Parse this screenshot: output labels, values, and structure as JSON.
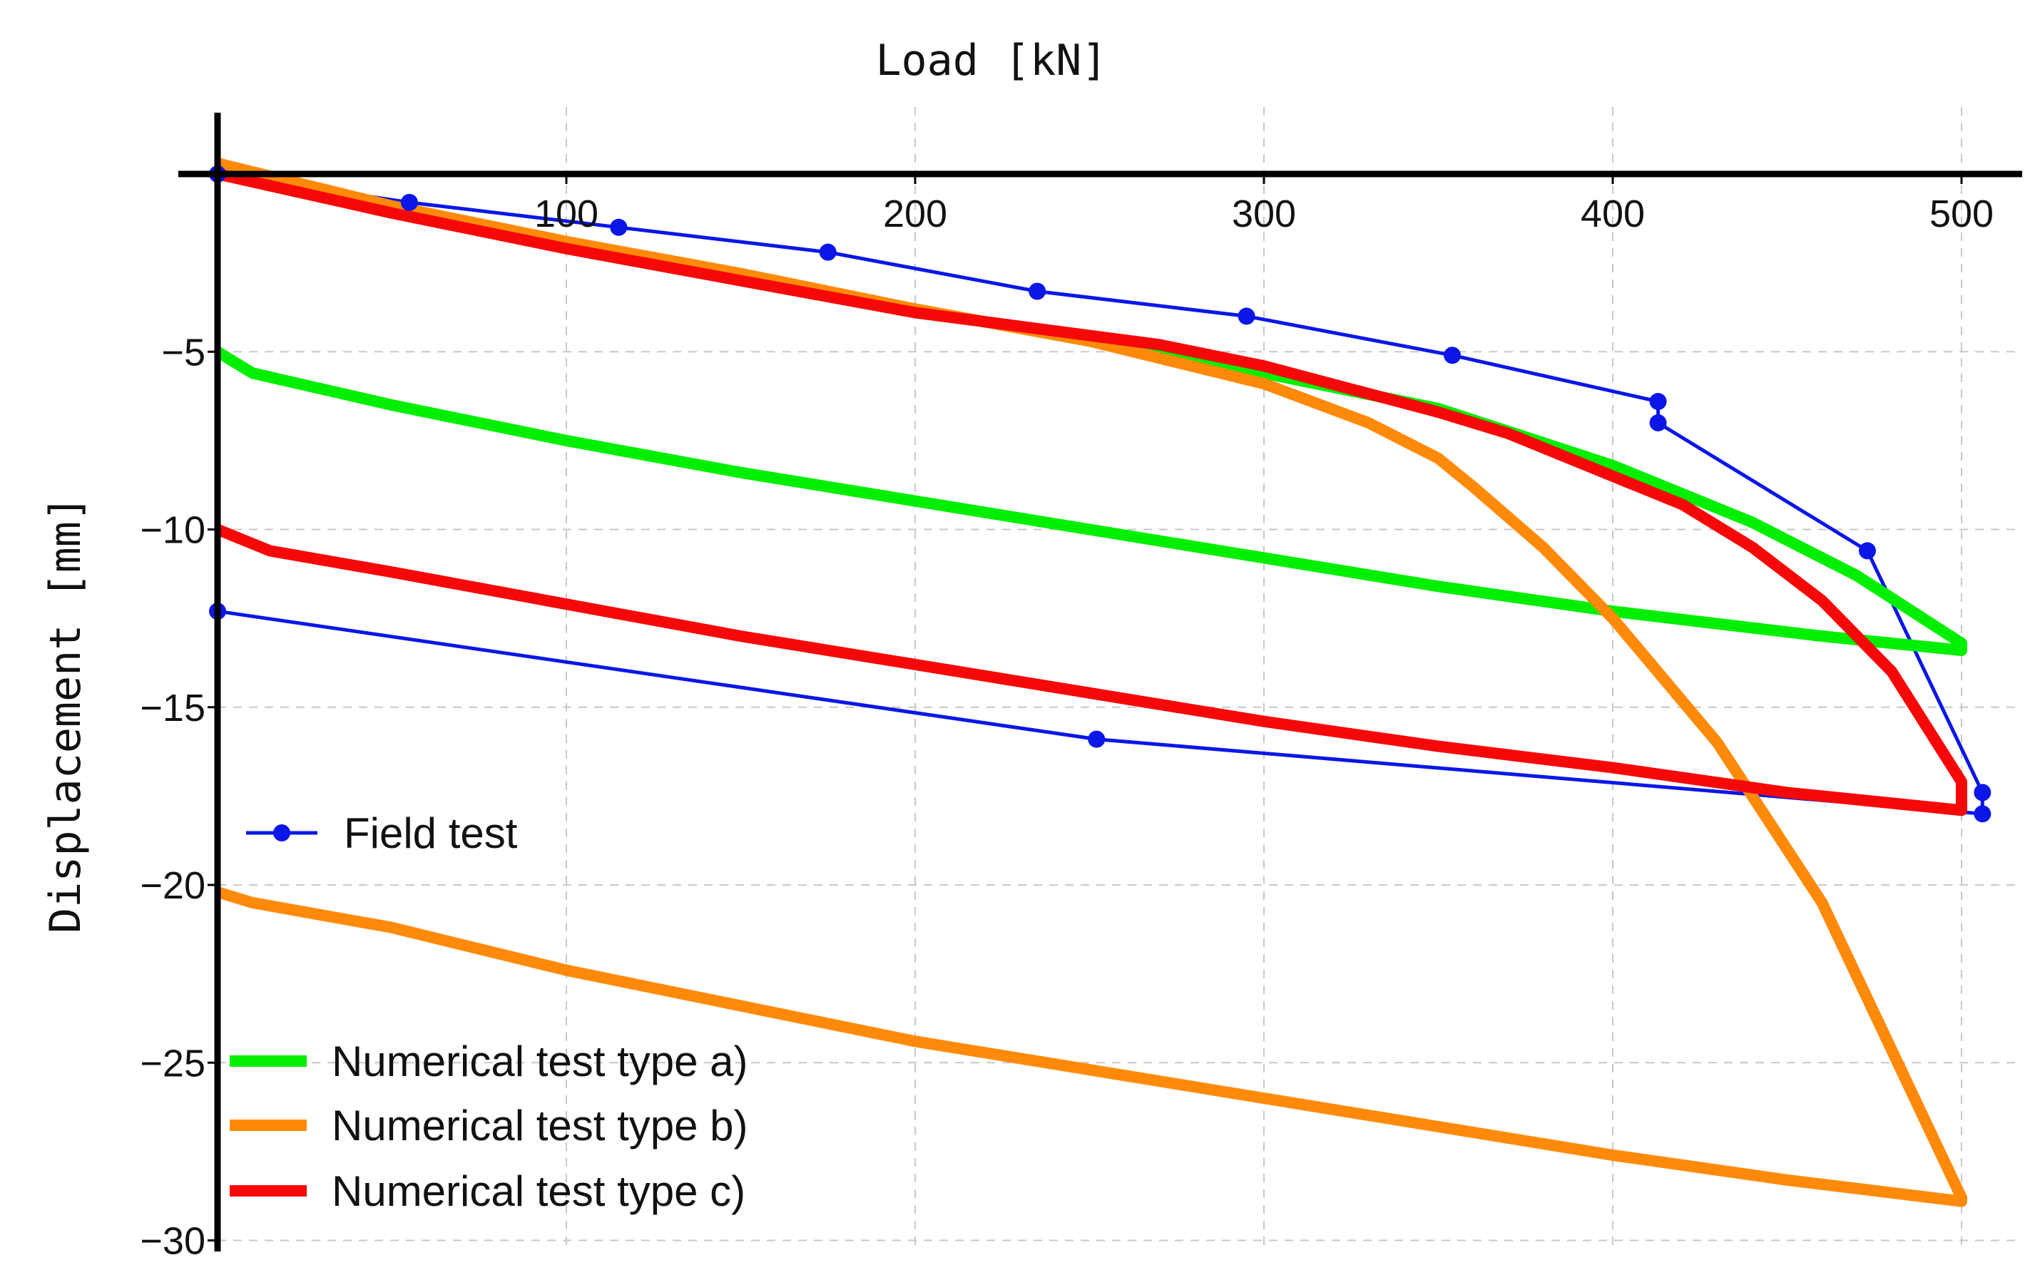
{
  "chart_data": {
    "type": "line",
    "title": "",
    "xlabel": "Load [kN]",
    "ylabel": "Displacement [mm]",
    "xlim": [
      0,
      520
    ],
    "ylim": [
      -30,
      3
    ],
    "x_axis_position": "top",
    "grid": true,
    "x_ticks": [
      100,
      200,
      300,
      400,
      500
    ],
    "y_ticks": [
      -5,
      -10,
      -15,
      -20,
      -25,
      -30
    ],
    "legend": [
      {
        "label": "Field test",
        "series_index": 0,
        "placement": "middle-left"
      },
      {
        "label": "Numerical test type a)",
        "series_index": 1,
        "placement": "bottom-left"
      },
      {
        "label": "Numerical test type b)",
        "series_index": 2,
        "placement": "bottom-left"
      },
      {
        "label": "Numerical test type c)",
        "series_index": 3,
        "placement": "bottom-left"
      }
    ],
    "series": [
      {
        "name": "Field test",
        "color": "#0A17E6",
        "style": "line-markers",
        "x": [
          0,
          55,
          115,
          175,
          235,
          295,
          354,
          413,
          413,
          473,
          506,
          506,
          252,
          0
        ],
        "y": [
          0,
          -0.8,
          -1.5,
          -2.2,
          -3.3,
          -4.0,
          -5.1,
          -6.4,
          -7.0,
          -10.6,
          -17.4,
          -18.0,
          -15.9,
          -12.3
        ]
      },
      {
        "name": "Numerical test type a)",
        "color": "#00EE00",
        "style": "thick-line",
        "x": [
          0,
          50,
          100,
          150,
          200,
          250,
          300,
          350,
          400,
          440,
          470,
          500,
          500,
          460,
          400,
          350,
          300,
          250,
          200,
          150,
          100,
          50,
          10,
          0
        ],
        "y": [
          0,
          -1.0,
          -2.0,
          -2.9,
          -3.8,
          -4.7,
          -5.6,
          -6.6,
          -8.2,
          -9.8,
          -11.3,
          -13.2,
          -13.4,
          -13.0,
          -12.3,
          -11.6,
          -10.8,
          -10.0,
          -9.2,
          -8.4,
          -7.5,
          -6.5,
          -5.6,
          -5.0
        ]
      },
      {
        "name": "Numerical test type b)",
        "color": "#FF8A0A",
        "style": "thick-line",
        "x": [
          0,
          50,
          100,
          150,
          200,
          250,
          300,
          330,
          350,
          360,
          380,
          400,
          430,
          460,
          500,
          500,
          450,
          400,
          350,
          300,
          250,
          200,
          150,
          100,
          50,
          10,
          0
        ],
        "y": [
          0.3,
          -0.9,
          -1.9,
          -2.8,
          -3.8,
          -4.7,
          -5.9,
          -7.0,
          -8.0,
          -8.8,
          -10.5,
          -12.5,
          -16.0,
          -20.5,
          -28.8,
          -28.9,
          -28.3,
          -27.6,
          -26.8,
          -26.0,
          -25.2,
          -24.4,
          -23.4,
          -22.4,
          -21.2,
          -20.5,
          -20.2
        ]
      },
      {
        "name": "Numerical test type c)",
        "color": "#F70808",
        "style": "thick-line",
        "x": [
          0,
          50,
          100,
          150,
          200,
          270,
          300,
          350,
          370,
          400,
          420,
          440,
          460,
          480,
          500,
          500,
          450,
          400,
          350,
          300,
          250,
          200,
          150,
          100,
          50,
          15,
          0
        ],
        "y": [
          0,
          -1.1,
          -2.1,
          -3.0,
          -3.9,
          -4.8,
          -5.4,
          -6.7,
          -7.3,
          -8.5,
          -9.3,
          -10.5,
          -12.0,
          -14.0,
          -17.1,
          -17.9,
          -17.4,
          -16.7,
          -16.1,
          -15.4,
          -14.6,
          -13.8,
          -13.0,
          -12.1,
          -11.2,
          -10.6,
          -10.0
        ]
      }
    ]
  }
}
